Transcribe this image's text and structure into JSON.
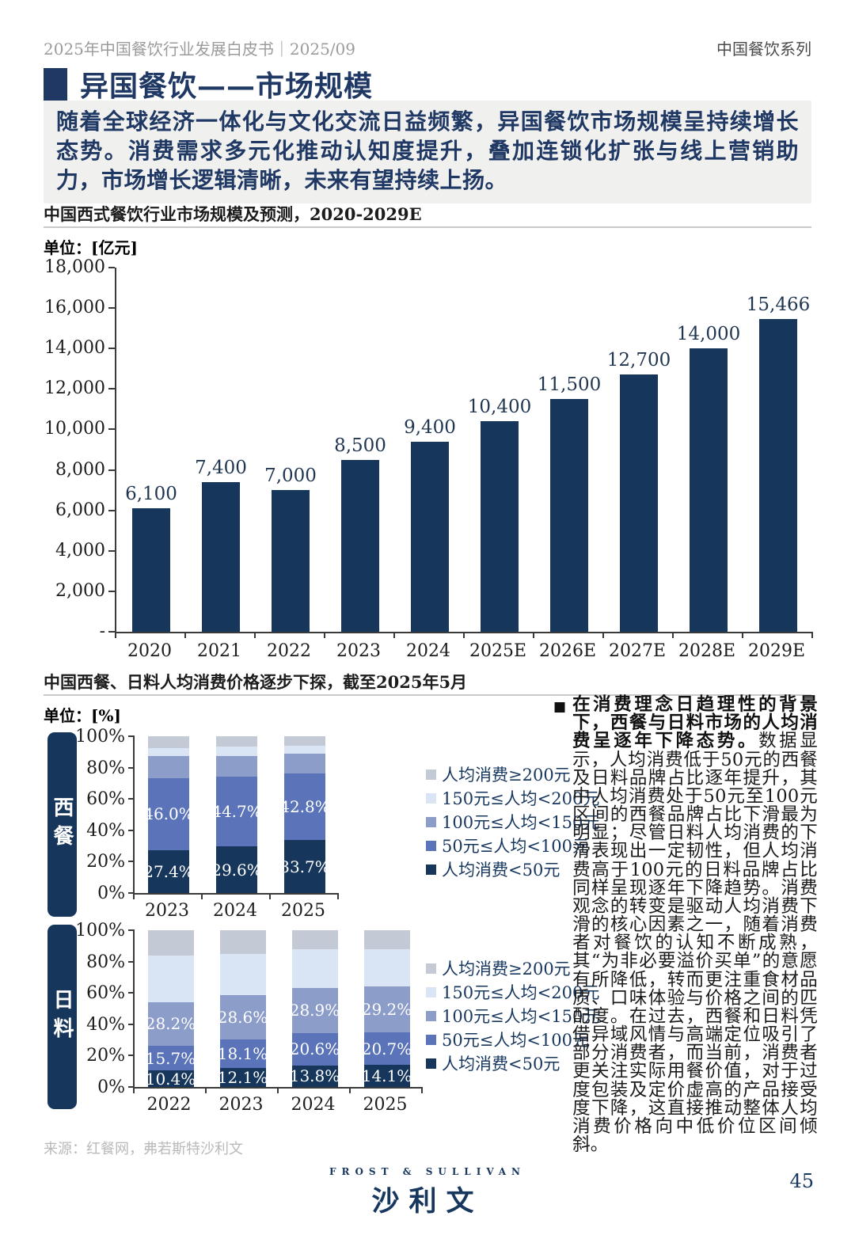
{
  "header": {
    "left": "2025年中国餐饮行业发展白皮书｜2025/09",
    "right": "中国餐饮系列"
  },
  "section": {
    "title": "异国餐饮——市场规模",
    "intro": "随着全球经济一体化与文化交流日益频繁，异国餐饮市场规模呈持续增长态势。消费需求多元化推动认知度提升，叠加连锁化扩张与线上营销助力，市场增长逻辑清晰，未来有望持续上扬。"
  },
  "section2": {
    "title": "中国西餐、日料人均消费价格逐步下探，截至2025年5月"
  },
  "colors": {
    "navy": "#17365C",
    "blue": "#5B74B9",
    "gray_blue": "#8D9DC9",
    "light_blue": "#D9E5F4",
    "gray": "#C3C9D5",
    "accent_title": "#1F3864"
  },
  "legend_items": [
    {
      "label": "人均消费≥200元",
      "color": "#C3C9D5"
    },
    {
      "label": "150元≤人均<200元",
      "color": "#D9E5F4"
    },
    {
      "label": "100元≤人均<150元",
      "color": "#8D9DC9"
    },
    {
      "label": "50元≤人均<100元",
      "color": "#5B74B9"
    },
    {
      "label": "人均消费<50元",
      "color": "#17365C"
    }
  ],
  "chart_data": [
    {
      "type": "bar",
      "title": "中国西式餐饮行业市场规模及预测，2020-2029E",
      "unit": "单位：[亿元]",
      "categories": [
        "2020",
        "2021",
        "2022",
        "2023",
        "2024",
        "2025E",
        "2026E",
        "2027E",
        "2028E",
        "2029E"
      ],
      "values": [
        6100,
        7400,
        7000,
        8500,
        9400,
        10400,
        11500,
        12700,
        14000,
        15466
      ],
      "labels": [
        "6,100",
        "7,400",
        "7,000",
        "8,500",
        "9,400",
        "10,400",
        "11,500",
        "12,700",
        "14,000",
        "15,466"
      ],
      "ylim": [
        0,
        18000
      ],
      "bar_color": "#17365C",
      "yticks": [
        {
          "v": 18000,
          "t": "18,000"
        },
        {
          "v": 16000,
          "t": "16,000"
        },
        {
          "v": 14000,
          "t": "14,000"
        },
        {
          "v": 12000,
          "t": "12,000"
        },
        {
          "v": 10000,
          "t": "10,000"
        },
        {
          "v": 8000,
          "t": "8,000"
        },
        {
          "v": 6000,
          "t": "6,000"
        },
        {
          "v": 4000,
          "t": "4,000"
        },
        {
          "v": 2000,
          "t": "2,000"
        },
        {
          "v": 0,
          "t": "-"
        }
      ]
    },
    {
      "type": "stacked-bar",
      "group": "西餐",
      "unit": "单位：[%]",
      "categories": [
        "2023",
        "2024",
        "2025"
      ],
      "yticks": [
        "100%",
        "80%",
        "60%",
        "40%",
        "20%",
        "0%"
      ],
      "ylim": [
        0,
        100
      ],
      "series": [
        {
          "name": "人均消费<50元",
          "color": "#17365C",
          "values": [
            27.4,
            29.6,
            33.7
          ],
          "labels": [
            "27.4%",
            "29.6%",
            "33.7%"
          ]
        },
        {
          "name": "50元≤人均<100元",
          "color": "#5B74B9",
          "values": [
            46.0,
            44.7,
            42.8
          ],
          "labels": [
            "46.0%",
            "44.7%",
            "42.8%"
          ]
        },
        {
          "name": "100元≤人均<150元",
          "color": "#8D9DC9",
          "values": [
            13.9,
            13.3,
            12.3
          ]
        },
        {
          "name": "150元≤人均<200元",
          "color": "#D9E5F4",
          "values": [
            5.2,
            5.7,
            5.2
          ]
        },
        {
          "name": "人均消费≥200元",
          "color": "#C3C9D5",
          "values": [
            7.5,
            6.7,
            6.0
          ]
        }
      ]
    },
    {
      "type": "stacked-bar",
      "group": "日料",
      "unit": "单位：[%]",
      "categories": [
        "2022",
        "2023",
        "2024",
        "2025"
      ],
      "yticks": [
        "100%",
        "80%",
        "60%",
        "40%",
        "20%",
        "0%"
      ],
      "ylim": [
        0,
        100
      ],
      "series": [
        {
          "name": "人均消费<50元",
          "color": "#17365C",
          "values": [
            10.4,
            12.1,
            13.8,
            14.1
          ],
          "labels": [
            "10.4%",
            "12.1%",
            "13.8%",
            "14.1%"
          ]
        },
        {
          "name": "50元≤人均<100元",
          "color": "#5B74B9",
          "values": [
            15.7,
            18.1,
            20.6,
            20.7
          ],
          "labels": [
            "15.7%",
            "18.1%",
            "20.6%",
            "20.7%"
          ]
        },
        {
          "name": "100元≤人均<150元",
          "color": "#8D9DC9",
          "values": [
            28.2,
            28.6,
            28.9,
            29.2
          ],
          "labels": [
            "28.2%",
            "28.6%",
            "28.9%",
            "29.2%"
          ]
        },
        {
          "name": "150元≤人均<200元",
          "color": "#D9E5F4",
          "values": [
            29.6,
            26.2,
            24.4,
            24.0
          ]
        },
        {
          "name": "人均消费≥200元",
          "color": "#C3C9D5",
          "values": [
            16.1,
            15.0,
            12.3,
            12.0
          ]
        }
      ]
    }
  ],
  "commentary": {
    "bullet": "■",
    "bold": "在消费理念日趋理性的背景下，西餐与日料市场的人均消费呈逐年下降态势。",
    "text": "数据显示，人均消费低于50元的西餐及日料品牌占比逐年提升，其中人均消费处于50元至100元区间的西餐品牌占比下滑最为明显；尽管日料人均消费的下滑表现出一定韧性，但人均消费高于100元的日料品牌占比同样呈现逐年下降趋势。消费观念的转变是驱动人均消费下滑的核心因素之一，随着消费者对餐饮的认知不断成熟，其“为非必要溢价买单”的意愿有所降低，转而更注重食材品质、口味体验与价格之间的匹配度。在过去，西餐和日料凭借异域风情与高端定位吸引了部分消费者，而当前，消费者更关注实际用餐价值，对于过度包装及定价虚高的产品接受度下降，这直接推动整体人均消费价格向中低价位区间倾斜。"
  },
  "footer": {
    "source": "来源：红餐网，弗若斯特沙利文",
    "logo_en": "FROST & SULLIVAN",
    "logo_cn": "沙利文",
    "page": "45"
  }
}
